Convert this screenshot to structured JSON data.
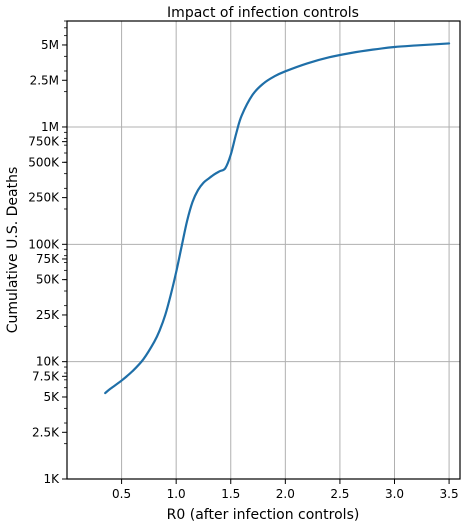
{
  "chart_data": {
    "type": "line",
    "title": "Impact of infection controls",
    "xlabel": "R0 (after infection controls)",
    "ylabel": "Cumulative U.S. Deaths",
    "xlim": [
      0.0,
      3.6
    ],
    "ylim": [
      1000,
      8000000
    ],
    "y_scale": "log",
    "grid": true,
    "x_ticks": [
      {
        "value": 0.5,
        "label": "0.5"
      },
      {
        "value": 1.0,
        "label": "1.0"
      },
      {
        "value": 1.5,
        "label": "1.5"
      },
      {
        "value": 2.0,
        "label": "2.0"
      },
      {
        "value": 2.5,
        "label": "2.5"
      },
      {
        "value": 3.0,
        "label": "3.0"
      },
      {
        "value": 3.5,
        "label": "3.5"
      }
    ],
    "y_ticks": [
      {
        "value": 1000,
        "label": "1K",
        "grid": true
      },
      {
        "value": 2500,
        "label": "2.5K",
        "grid": false
      },
      {
        "value": 5000,
        "label": "5K",
        "grid": false
      },
      {
        "value": 7500,
        "label": "7.5K",
        "grid": false
      },
      {
        "value": 10000,
        "label": "10K",
        "grid": true
      },
      {
        "value": 25000,
        "label": "25K",
        "grid": false
      },
      {
        "value": 50000,
        "label": "50K",
        "grid": false
      },
      {
        "value": 75000,
        "label": "75K",
        "grid": false
      },
      {
        "value": 100000,
        "label": "100K",
        "grid": true
      },
      {
        "value": 250000,
        "label": "250K",
        "grid": false
      },
      {
        "value": 500000,
        "label": "500K",
        "grid": false
      },
      {
        "value": 750000,
        "label": "750K",
        "grid": false
      },
      {
        "value": 1000000,
        "label": "1M",
        "grid": true
      },
      {
        "value": 2500000,
        "label": "2.5M",
        "grid": false
      },
      {
        "value": 5000000,
        "label": "5M",
        "grid": false
      }
    ],
    "series": [
      {
        "color": "#1f6fa8",
        "x": [
          0.35,
          0.4,
          0.5,
          0.6,
          0.7,
          0.8,
          0.85,
          0.9,
          0.95,
          1.0,
          1.05,
          1.1,
          1.15,
          1.2,
          1.25,
          1.3,
          1.35,
          1.4,
          1.45,
          1.5,
          1.55,
          1.6,
          1.7,
          1.8,
          1.9,
          2.0,
          2.2,
          2.4,
          2.6,
          2.8,
          3.0,
          3.2,
          3.5
        ],
        "y": [
          5400,
          5900,
          6900,
          8300,
          10500,
          14800,
          18600,
          25000,
          37000,
          58000,
          96000,
          158000,
          230000,
          290000,
          335000,
          365000,
          395000,
          420000,
          445000,
          580000,
          880000,
          1250000,
          1880000,
          2350000,
          2700000,
          2980000,
          3480000,
          3920000,
          4270000,
          4560000,
          4800000,
          4950000,
          5150000
        ]
      }
    ]
  }
}
